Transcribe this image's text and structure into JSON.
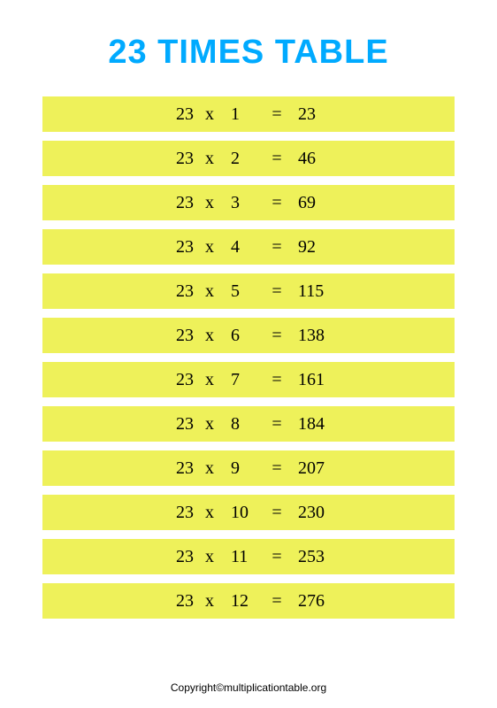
{
  "title": "23 Times Table",
  "title_color": "#00aaff",
  "row_bg": "#eef15a",
  "text_color": "#000000",
  "x_symbol": "x",
  "eq_symbol": "=",
  "rows": [
    {
      "multiplicand": "23",
      "multiplier": "1",
      "result": "23"
    },
    {
      "multiplicand": "23",
      "multiplier": "2",
      "result": "46"
    },
    {
      "multiplicand": "23",
      "multiplier": "3",
      "result": "69"
    },
    {
      "multiplicand": "23",
      "multiplier": "4",
      "result": "92"
    },
    {
      "multiplicand": "23",
      "multiplier": "5",
      "result": "115"
    },
    {
      "multiplicand": "23",
      "multiplier": "6",
      "result": "138"
    },
    {
      "multiplicand": "23",
      "multiplier": "7",
      "result": "161"
    },
    {
      "multiplicand": "23",
      "multiplier": "8",
      "result": "184"
    },
    {
      "multiplicand": "23",
      "multiplier": "9",
      "result": "207"
    },
    {
      "multiplicand": "23",
      "multiplier": "10",
      "result": "230"
    },
    {
      "multiplicand": "23",
      "multiplier": "11",
      "result": "253"
    },
    {
      "multiplicand": "23",
      "multiplier": "12",
      "result": "276"
    }
  ],
  "footer": "Copyright©multiplicationtable.org"
}
